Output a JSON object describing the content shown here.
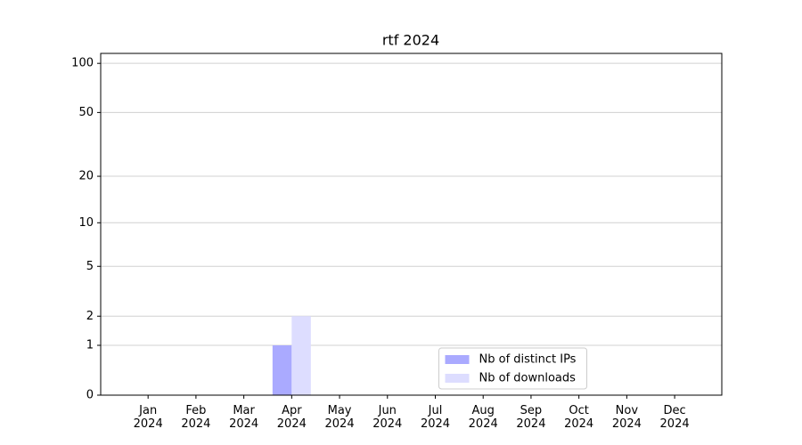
{
  "chart_data": {
    "type": "bar",
    "title": "rtf 2024",
    "categories": [
      "Jan\n2024",
      "Feb\n2024",
      "Mar\n2024",
      "Apr\n2024",
      "May\n2024",
      "Jun\n2024",
      "Jul\n2024",
      "Aug\n2024",
      "Sep\n2024",
      "Oct\n2024",
      "Nov\n2024",
      "Dec\n2024"
    ],
    "series": [
      {
        "name": "Nb of distinct IPs",
        "color": "#aaaaff",
        "values": [
          0,
          0,
          0,
          1,
          0,
          0,
          0,
          0,
          0,
          0,
          0,
          0
        ]
      },
      {
        "name": "Nb of downloads",
        "color": "#ddddff",
        "values": [
          0,
          0,
          0,
          2,
          0,
          0,
          0,
          0,
          0,
          0,
          0,
          0
        ]
      }
    ],
    "yscale": "log1p",
    "ylim": [
      0,
      115
    ],
    "yticks": [
      0,
      1,
      2,
      5,
      10,
      20,
      50,
      100
    ],
    "grid": true,
    "legend": "lower center"
  }
}
